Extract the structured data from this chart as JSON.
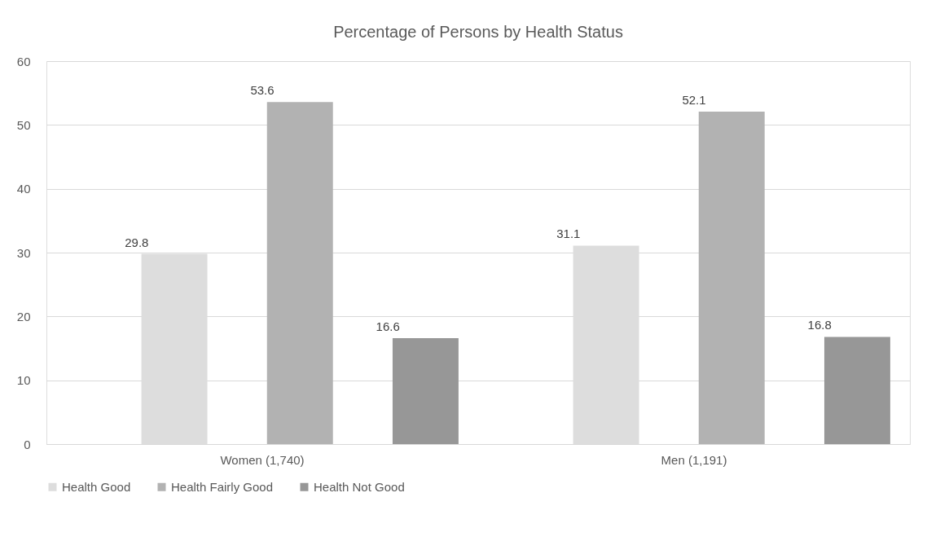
{
  "chart_data": {
    "type": "bar",
    "title": "Percentage of Persons by Health Status",
    "categories": [
      "Women (1,740)",
      "Men (1,191)"
    ],
    "series": [
      {
        "name": "Health Good",
        "color": "#dddddd",
        "values": [
          29.8,
          31.1
        ]
      },
      {
        "name": "Health Fairly Good",
        "color": "#b2b2b2",
        "values": [
          53.6,
          52.1
        ]
      },
      {
        "name": "Health Not Good",
        "color": "#979797",
        "values": [
          16.6,
          16.8
        ]
      }
    ],
    "ylim": [
      0,
      60
    ],
    "yticks": [
      0,
      10,
      20,
      30,
      40,
      50,
      60
    ],
    "grid": "y",
    "legend": "bottom",
    "data_labels": true
  }
}
